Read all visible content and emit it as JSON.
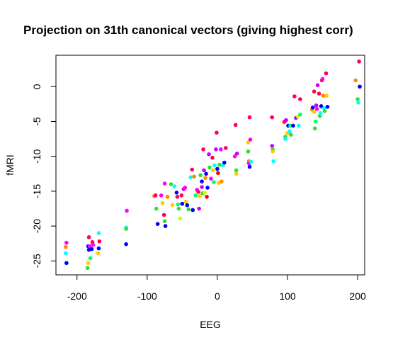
{
  "chart_data": {
    "type": "scatter",
    "title": "Projection on 31th canonical vectors (giving highest corr)",
    "xlabel": "EEG",
    "ylabel": "fMRI",
    "xlim": [
      -230,
      210
    ],
    "ylim": [
      -27,
      4.5
    ],
    "x_ticks": [
      -200,
      -100,
      0,
      100,
      200
    ],
    "x_tick_labels": [
      "-200",
      "-100",
      "0",
      "100",
      "200"
    ],
    "y_ticks": [
      -25,
      -20,
      -15,
      -10,
      -5,
      0
    ],
    "y_tick_labels": [
      "-25",
      "-20",
      "-15",
      "-10",
      "-5",
      "0"
    ],
    "grid": false,
    "legend": "none",
    "palette": [
      "#ff0000",
      "#ff0055",
      "#ff00ff",
      "#cc00ff",
      "#0000ff",
      "#00ffff",
      "#00ff66",
      "#33dd33",
      "#ccff00",
      "#ffcc00",
      "#ff8800"
    ],
    "points": [
      {
        "x": -215,
        "y": -22.4,
        "c": 2
      },
      {
        "x": -216,
        "y": -23.0,
        "c": 10
      },
      {
        "x": -216,
        "y": -23.9,
        "c": 5
      },
      {
        "x": -215,
        "y": -25.3,
        "c": 4
      },
      {
        "x": -183,
        "y": -21.6,
        "c": 1
      },
      {
        "x": -184,
        "y": -22.9,
        "c": 4
      },
      {
        "x": -183,
        "y": -23.4,
        "c": 4
      },
      {
        "x": -182,
        "y": -22.9,
        "c": 2
      },
      {
        "x": -178,
        "y": -22.3,
        "c": 1
      },
      {
        "x": -179,
        "y": -23.3,
        "c": 4
      },
      {
        "x": -181,
        "y": -24.6,
        "c": 6
      },
      {
        "x": -184,
        "y": -25.3,
        "c": 9
      },
      {
        "x": -185,
        "y": -26.0,
        "c": 7
      },
      {
        "x": -177,
        "y": -22.7,
        "c": 2
      },
      {
        "x": -169,
        "y": -21.0,
        "c": 5
      },
      {
        "x": -168,
        "y": -22.2,
        "c": 1
      },
      {
        "x": -169,
        "y": -23.2,
        "c": 4
      },
      {
        "x": -170,
        "y": -23.9,
        "c": 9
      },
      {
        "x": -129,
        "y": -17.8,
        "c": 2
      },
      {
        "x": -130,
        "y": -20.2,
        "c": 5
      },
      {
        "x": -130,
        "y": -20.4,
        "c": 7
      },
      {
        "x": -130,
        "y": -22.6,
        "c": 4
      },
      {
        "x": -90,
        "y": -15.7,
        "c": 10
      },
      {
        "x": -88,
        "y": -15.6,
        "c": 1
      },
      {
        "x": -87,
        "y": -17.5,
        "c": 7
      },
      {
        "x": -85,
        "y": -19.7,
        "c": 4
      },
      {
        "x": -80,
        "y": -15.6,
        "c": 2
      },
      {
        "x": -78,
        "y": -16.7,
        "c": 9
      },
      {
        "x": -76,
        "y": -18.4,
        "c": 1
      },
      {
        "x": -75,
        "y": -19.3,
        "c": 7
      },
      {
        "x": -74,
        "y": -20.0,
        "c": 4
      },
      {
        "x": -75,
        "y": -13.9,
        "c": 2
      },
      {
        "x": -71,
        "y": -15.8,
        "c": 10
      },
      {
        "x": -66,
        "y": -14.0,
        "c": 7
      },
      {
        "x": -64,
        "y": -17.0,
        "c": 9
      },
      {
        "x": -61,
        "y": -14.3,
        "c": 5
      },
      {
        "x": -58,
        "y": -15.2,
        "c": 4
      },
      {
        "x": -57,
        "y": -15.8,
        "c": 1
      },
      {
        "x": -56,
        "y": -16.9,
        "c": 6
      },
      {
        "x": -55,
        "y": -17.5,
        "c": 7
      },
      {
        "x": -53,
        "y": -18.9,
        "c": 8
      },
      {
        "x": -51,
        "y": -15.6,
        "c": 1
      },
      {
        "x": -50,
        "y": -16.8,
        "c": 4
      },
      {
        "x": -48,
        "y": -14.7,
        "c": 3
      },
      {
        "x": -46,
        "y": -14.5,
        "c": 2
      },
      {
        "x": -45,
        "y": -16.5,
        "c": 9
      },
      {
        "x": -43,
        "y": -17.0,
        "c": 4
      },
      {
        "x": -41,
        "y": -17.6,
        "c": 7
      },
      {
        "x": -38,
        "y": -13.0,
        "c": 5
      },
      {
        "x": -36,
        "y": -11.9,
        "c": 1
      },
      {
        "x": -35,
        "y": -17.7,
        "c": 4
      },
      {
        "x": -33,
        "y": -12.9,
        "c": 10
      },
      {
        "x": -31,
        "y": -15.6,
        "c": 6
      },
      {
        "x": -29,
        "y": -14.8,
        "c": 2
      },
      {
        "x": -27,
        "y": -15.1,
        "c": 1
      },
      {
        "x": -26,
        "y": -17.5,
        "c": 3
      },
      {
        "x": -25,
        "y": -15.7,
        "c": 9
      },
      {
        "x": -24,
        "y": -12.7,
        "c": 7
      },
      {
        "x": -22,
        "y": -13.6,
        "c": 4
      },
      {
        "x": -22,
        "y": -14.4,
        "c": 3
      },
      {
        "x": -21,
        "y": -15.3,
        "c": 7
      },
      {
        "x": -20,
        "y": -9.0,
        "c": 1
      },
      {
        "x": -19,
        "y": -12.0,
        "c": 3
      },
      {
        "x": -18,
        "y": -15.2,
        "c": 8
      },
      {
        "x": -17,
        "y": -13.1,
        "c": 10
      },
      {
        "x": -16,
        "y": -12.5,
        "c": 4
      },
      {
        "x": -15,
        "y": -15.8,
        "c": 0
      },
      {
        "x": -14,
        "y": -14.5,
        "c": 4
      },
      {
        "x": -12,
        "y": -9.7,
        "c": 3
      },
      {
        "x": -11,
        "y": -11.6,
        "c": 7
      },
      {
        "x": -9,
        "y": -13.2,
        "c": 2
      },
      {
        "x": -7,
        "y": -10.2,
        "c": 1
      },
      {
        "x": -6,
        "y": -12.0,
        "c": 9
      },
      {
        "x": -5,
        "y": -13.7,
        "c": 6
      },
      {
        "x": -4,
        "y": -11.3,
        "c": 5
      },
      {
        "x": -2,
        "y": -9.0,
        "c": 3
      },
      {
        "x": -1,
        "y": -6.6,
        "c": 1
      },
      {
        "x": 0,
        "y": -11.8,
        "c": 4
      },
      {
        "x": 1,
        "y": -12.4,
        "c": 0
      },
      {
        "x": 2,
        "y": -13.8,
        "c": 9
      },
      {
        "x": 3,
        "y": -11.2,
        "c": 7
      },
      {
        "x": 5,
        "y": -9.0,
        "c": 2
      },
      {
        "x": 6,
        "y": -13.6,
        "c": 10
      },
      {
        "x": 8,
        "y": -11.3,
        "c": 5
      },
      {
        "x": 10,
        "y": -10.9,
        "c": 4
      },
      {
        "x": 12,
        "y": -8.8,
        "c": 1
      },
      {
        "x": 26,
        "y": -5.5,
        "c": 1
      },
      {
        "x": 25,
        "y": -10.0,
        "c": 2
      },
      {
        "x": 27,
        "y": -12.0,
        "c": 7
      },
      {
        "x": 27,
        "y": -12.5,
        "c": 9
      },
      {
        "x": 28,
        "y": -9.6,
        "c": 3
      },
      {
        "x": 44,
        "y": -8.0,
        "c": 9
      },
      {
        "x": 44,
        "y": -9.3,
        "c": 7
      },
      {
        "x": 45,
        "y": -10.7,
        "c": 10
      },
      {
        "x": 45,
        "y": -11.0,
        "c": 2
      },
      {
        "x": 46,
        "y": -11.5,
        "c": 4
      },
      {
        "x": 46,
        "y": -4.4,
        "c": 1
      },
      {
        "x": 47,
        "y": -7.6,
        "c": 2
      },
      {
        "x": 48,
        "y": -10.8,
        "c": 5
      },
      {
        "x": 78,
        "y": -4.4,
        "c": 1
      },
      {
        "x": 78,
        "y": -8.5,
        "c": 3
      },
      {
        "x": 79,
        "y": -9.0,
        "c": 7
      },
      {
        "x": 79,
        "y": -9.3,
        "c": 9
      },
      {
        "x": 80,
        "y": -10.7,
        "c": 5
      },
      {
        "x": 95,
        "y": -5.1,
        "c": 10
      },
      {
        "x": 96,
        "y": -5.0,
        "c": 1
      },
      {
        "x": 97,
        "y": -7.2,
        "c": 7
      },
      {
        "x": 97,
        "y": -7.5,
        "c": 5
      },
      {
        "x": 98,
        "y": -4.8,
        "c": 3
      },
      {
        "x": 100,
        "y": -6.7,
        "c": 9
      },
      {
        "x": 101,
        "y": -5.6,
        "c": 4
      },
      {
        "x": 103,
        "y": -6.4,
        "c": 5
      },
      {
        "x": 104,
        "y": -5.6,
        "c": 6
      },
      {
        "x": 105,
        "y": -6.9,
        "c": 7
      },
      {
        "x": 108,
        "y": -5.6,
        "c": 4
      },
      {
        "x": 110,
        "y": -1.4,
        "c": 1
      },
      {
        "x": 112,
        "y": -4.5,
        "c": 3
      },
      {
        "x": 115,
        "y": -4.3,
        "c": 8
      },
      {
        "x": 116,
        "y": -5.6,
        "c": 5
      },
      {
        "x": 118,
        "y": -4.0,
        "c": 6
      },
      {
        "x": 118,
        "y": -1.8,
        "c": 1
      },
      {
        "x": 135,
        "y": -3.3,
        "c": 10
      },
      {
        "x": 136,
        "y": -3.0,
        "c": 4
      },
      {
        "x": 138,
        "y": -0.7,
        "c": 1
      },
      {
        "x": 138,
        "y": -3.6,
        "c": 9
      },
      {
        "x": 139,
        "y": -6.0,
        "c": 7
      },
      {
        "x": 140,
        "y": -5.0,
        "c": 6
      },
      {
        "x": 141,
        "y": -2.7,
        "c": 3
      },
      {
        "x": 142,
        "y": -3.2,
        "c": 2
      },
      {
        "x": 143,
        "y": 0.2,
        "c": 3
      },
      {
        "x": 145,
        "y": -1.0,
        "c": 1
      },
      {
        "x": 146,
        "y": -4.2,
        "c": 7
      },
      {
        "x": 147,
        "y": -3.8,
        "c": 5
      },
      {
        "x": 148,
        "y": -2.8,
        "c": 4
      },
      {
        "x": 149,
        "y": 0.9,
        "c": 1
      },
      {
        "x": 150,
        "y": 1.1,
        "c": 2
      },
      {
        "x": 151,
        "y": -1.3,
        "c": 10
      },
      {
        "x": 152,
        "y": -3.1,
        "c": 5
      },
      {
        "x": 153,
        "y": -3.5,
        "c": 7
      },
      {
        "x": 155,
        "y": 1.9,
        "c": 1
      },
      {
        "x": 156,
        "y": -1.3,
        "c": 9
      },
      {
        "x": 157,
        "y": -2.9,
        "c": 4
      },
      {
        "x": 197,
        "y": 0.9,
        "c": 10
      },
      {
        "x": 200,
        "y": -1.8,
        "c": 7
      },
      {
        "x": 201,
        "y": -2.3,
        "c": 5
      },
      {
        "x": 202,
        "y": 3.6,
        "c": 1
      },
      {
        "x": 203,
        "y": 0.0,
        "c": 4
      }
    ]
  }
}
